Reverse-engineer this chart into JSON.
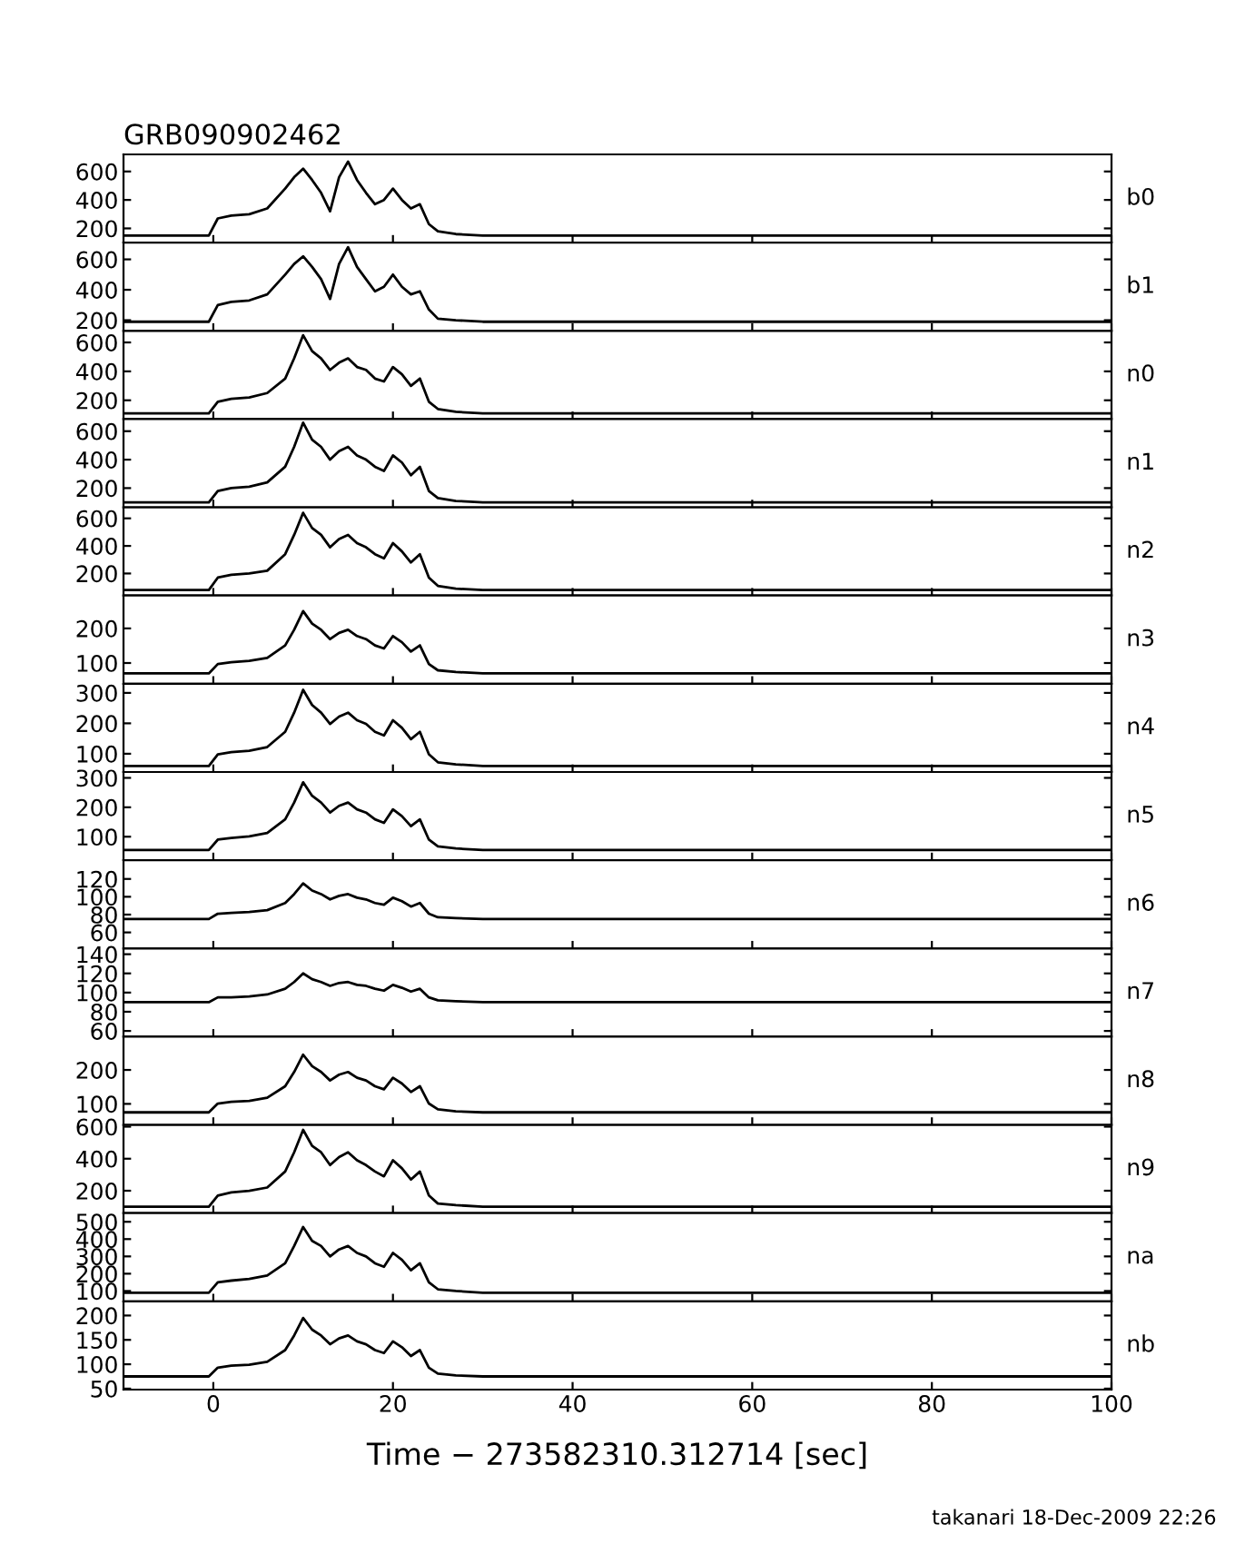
{
  "chart_data": [
    {
      "type": "line",
      "title": "GRB090902462",
      "annotations": [
        "b0"
      ],
      "tick_labels": "y",
      "xlim": [
        -10,
        100
      ],
      "xticks": [
        0,
        20,
        40,
        60,
        80,
        100
      ],
      "ylim": [
        100,
        720
      ],
      "yticks": [
        200,
        400,
        600
      ],
      "grid": false,
      "legend": false,
      "x": [
        -10,
        -5,
        -0.5,
        0.5,
        2,
        4,
        6,
        8,
        9,
        10,
        11,
        12,
        13,
        14,
        15,
        16,
        17,
        18,
        19,
        20,
        21,
        22,
        23,
        24,
        25,
        27,
        30,
        40,
        50,
        60,
        70,
        80,
        90,
        100
      ],
      "series": [
        {
          "color": "#000000",
          "values": [
            150,
            150,
            150,
            270,
            290,
            300,
            340,
            480,
            560,
            620,
            540,
            450,
            320,
            560,
            670,
            540,
            450,
            370,
            400,
            480,
            400,
            340,
            370,
            230,
            180,
            160,
            150,
            150,
            150,
            150,
            150,
            150,
            150,
            150
          ]
        }
      ]
    },
    {
      "type": "line",
      "annotations": [
        "b1"
      ],
      "tick_labels": "y",
      "xlim": [
        -10,
        100
      ],
      "xticks": [
        0,
        20,
        40,
        60,
        80,
        100
      ],
      "ylim": [
        130,
        710
      ],
      "yticks": [
        200,
        400,
        600
      ],
      "grid": false,
      "legend": false,
      "x": [
        -10,
        -5,
        -0.5,
        0.5,
        2,
        4,
        6,
        8,
        9,
        10,
        11,
        12,
        13,
        14,
        15,
        16,
        17,
        18,
        19,
        20,
        21,
        22,
        23,
        24,
        25,
        27,
        30,
        40,
        50,
        60,
        70,
        80,
        90,
        100
      ],
      "series": [
        {
          "color": "#000000",
          "values": [
            190,
            190,
            190,
            300,
            320,
            330,
            370,
            500,
            570,
            620,
            550,
            470,
            340,
            570,
            680,
            550,
            470,
            390,
            420,
            500,
            420,
            370,
            390,
            270,
            210,
            200,
            190,
            190,
            190,
            190,
            190,
            190,
            190,
            190
          ]
        }
      ]
    },
    {
      "type": "line",
      "annotations": [
        "n0"
      ],
      "tick_labels": "y",
      "xlim": [
        -10,
        100
      ],
      "xticks": [
        0,
        20,
        40,
        60,
        80,
        100
      ],
      "ylim": [
        70,
        680
      ],
      "yticks": [
        200,
        400,
        600
      ],
      "grid": false,
      "legend": false,
      "x": [
        -10,
        -5,
        -0.5,
        0.5,
        2,
        4,
        6,
        8,
        9,
        10,
        11,
        12,
        13,
        14,
        15,
        16,
        17,
        18,
        19,
        20,
        21,
        22,
        23,
        24,
        25,
        27,
        30,
        40,
        50,
        60,
        70,
        80,
        90,
        100
      ],
      "series": [
        {
          "color": "#000000",
          "values": [
            110,
            110,
            110,
            190,
            210,
            220,
            250,
            350,
            490,
            650,
            540,
            490,
            410,
            460,
            490,
            430,
            410,
            350,
            330,
            430,
            380,
            300,
            350,
            190,
            140,
            120,
            110,
            110,
            110,
            110,
            110,
            110,
            110,
            110
          ]
        }
      ]
    },
    {
      "type": "line",
      "annotations": [
        "n1"
      ],
      "tick_labels": "y",
      "xlim": [
        -10,
        100
      ],
      "xticks": [
        0,
        20,
        40,
        60,
        80,
        100
      ],
      "ylim": [
        65,
        685
      ],
      "yticks": [
        200,
        400,
        600
      ],
      "grid": false,
      "legend": false,
      "x": [
        -10,
        -5,
        -0.5,
        0.5,
        2,
        4,
        6,
        8,
        9,
        10,
        11,
        12,
        13,
        14,
        15,
        16,
        17,
        18,
        19,
        20,
        21,
        22,
        23,
        24,
        25,
        27,
        30,
        40,
        50,
        60,
        70,
        80,
        90,
        100
      ],
      "series": [
        {
          "color": "#000000",
          "values": [
            100,
            100,
            100,
            180,
            200,
            210,
            240,
            350,
            490,
            660,
            540,
            490,
            400,
            460,
            490,
            430,
            400,
            350,
            320,
            430,
            380,
            290,
            350,
            180,
            130,
            110,
            100,
            100,
            100,
            100,
            100,
            100,
            100,
            100
          ]
        }
      ]
    },
    {
      "type": "line",
      "annotations": [
        "n2"
      ],
      "tick_labels": "y",
      "xlim": [
        -10,
        100
      ],
      "xticks": [
        0,
        20,
        40,
        60,
        80,
        100
      ],
      "ylim": [
        40,
        680
      ],
      "yticks": [
        200,
        400,
        600
      ],
      "grid": false,
      "legend": false,
      "x": [
        -10,
        -5,
        -0.5,
        0.5,
        2,
        4,
        6,
        8,
        9,
        10,
        11,
        12,
        13,
        14,
        15,
        16,
        17,
        18,
        19,
        20,
        21,
        22,
        23,
        24,
        25,
        27,
        30,
        40,
        50,
        60,
        70,
        80,
        90,
        100
      ],
      "series": [
        {
          "color": "#000000",
          "values": [
            80,
            80,
            80,
            170,
            190,
            200,
            220,
            340,
            480,
            640,
            530,
            480,
            390,
            450,
            480,
            420,
            390,
            340,
            310,
            420,
            360,
            280,
            340,
            170,
            110,
            90,
            80,
            80,
            80,
            80,
            80,
            80,
            80,
            80
          ]
        }
      ]
    },
    {
      "type": "line",
      "annotations": [
        "n3"
      ],
      "tick_labels": "y",
      "xlim": [
        -10,
        100
      ],
      "xticks": [
        0,
        20,
        40,
        60,
        80,
        100
      ],
      "ylim": [
        40,
        295
      ],
      "yticks": [
        100,
        200
      ],
      "grid": false,
      "legend": false,
      "x": [
        -10,
        -5,
        -0.5,
        0.5,
        2,
        4,
        6,
        8,
        9,
        10,
        11,
        12,
        13,
        14,
        15,
        16,
        17,
        18,
        19,
        20,
        21,
        22,
        23,
        24,
        25,
        27,
        30,
        40,
        50,
        60,
        70,
        80,
        90,
        100
      ],
      "series": [
        {
          "color": "#000000",
          "values": [
            70,
            70,
            70,
            97,
            102,
            106,
            115,
            151,
            196,
            250,
            214,
            196,
            169,
            187,
            196,
            178,
            169,
            151,
            142,
            178,
            160,
            133,
            151,
            97,
            79,
            74,
            70,
            70,
            70,
            70,
            70,
            70,
            70,
            70
          ]
        }
      ]
    },
    {
      "type": "line",
      "annotations": [
        "n4"
      ],
      "tick_labels": "y",
      "xlim": [
        -10,
        100
      ],
      "xticks": [
        0,
        20,
        40,
        60,
        80,
        100
      ],
      "ylim": [
        40,
        330
      ],
      "yticks": [
        100,
        200,
        300
      ],
      "grid": false,
      "legend": false,
      "x": [
        -10,
        -5,
        -0.5,
        0.5,
        2,
        4,
        6,
        8,
        9,
        10,
        11,
        12,
        13,
        14,
        15,
        16,
        17,
        18,
        19,
        20,
        21,
        22,
        23,
        24,
        25,
        27,
        30,
        40,
        50,
        60,
        70,
        80,
        90,
        100
      ],
      "series": [
        {
          "color": "#000000",
          "values": [
            60,
            60,
            60,
            98,
            105,
            110,
            122,
            172,
            235,
            310,
            260,
            235,
            198,
            222,
            235,
            210,
            198,
            172,
            160,
            210,
            185,
            148,
            172,
            98,
            72,
            65,
            60,
            60,
            60,
            60,
            60,
            60,
            60,
            60
          ]
        }
      ]
    },
    {
      "type": "line",
      "annotations": [
        "n5"
      ],
      "tick_labels": "y",
      "xlim": [
        -10,
        100
      ],
      "xticks": [
        0,
        20,
        40,
        60,
        80,
        100
      ],
      "ylim": [
        20,
        320
      ],
      "yticks": [
        100,
        200,
        300
      ],
      "grid": false,
      "legend": false,
      "x": [
        -10,
        -5,
        -0.5,
        0.5,
        2,
        4,
        6,
        8,
        9,
        10,
        11,
        12,
        13,
        14,
        15,
        16,
        17,
        18,
        19,
        20,
        21,
        22,
        23,
        24,
        25,
        27,
        30,
        40,
        50,
        60,
        70,
        80,
        90,
        100
      ],
      "series": [
        {
          "color": "#000000",
          "values": [
            55,
            55,
            55,
            90,
            96,
            101,
            113,
            159,
            216,
            285,
            239,
            216,
            182,
            205,
            216,
            193,
            182,
            159,
            147,
            193,
            170,
            136,
            159,
            90,
            67,
            60,
            55,
            55,
            55,
            55,
            55,
            55,
            55,
            55
          ]
        }
      ]
    },
    {
      "type": "line",
      "annotations": [
        "n6"
      ],
      "tick_labels": "y",
      "xlim": [
        -10,
        100
      ],
      "xticks": [
        0,
        20,
        40,
        60,
        80,
        100
      ],
      "ylim": [
        42,
        141
      ],
      "yticks": [
        60,
        80,
        100,
        120
      ],
      "grid": false,
      "legend": false,
      "x": [
        -10,
        -5,
        -0.5,
        0.5,
        2,
        4,
        6,
        8,
        9,
        10,
        11,
        12,
        13,
        14,
        15,
        16,
        17,
        18,
        19,
        20,
        21,
        22,
        23,
        24,
        25,
        27,
        30,
        40,
        50,
        60,
        70,
        80,
        90,
        100
      ],
      "series": [
        {
          "color": "#000000",
          "values": [
            75,
            75,
            75,
            81,
            82,
            83,
            85,
            93,
            103,
            115,
            107,
            103,
            97,
            101,
            103,
            99,
            97,
            93,
            91,
            99,
            95,
            89,
            93,
            81,
            77,
            76,
            75,
            75,
            75,
            75,
            75,
            75,
            75,
            75
          ]
        }
      ]
    },
    {
      "type": "line",
      "annotations": [
        "n7"
      ],
      "tick_labels": "y",
      "xlim": [
        -10,
        100
      ],
      "xticks": [
        0,
        20,
        40,
        60,
        80,
        100
      ],
      "ylim": [
        54,
        146
      ],
      "yticks": [
        60,
        80,
        100,
        120,
        140
      ],
      "grid": false,
      "legend": false,
      "x": [
        -10,
        -5,
        -0.5,
        0.5,
        2,
        4,
        6,
        8,
        9,
        10,
        11,
        12,
        13,
        14,
        15,
        16,
        17,
        18,
        19,
        20,
        21,
        22,
        23,
        24,
        25,
        27,
        30,
        40,
        50,
        60,
        70,
        80,
        90,
        100
      ],
      "series": [
        {
          "color": "#000000",
          "values": [
            90,
            90,
            90,
            95,
            95,
            96,
            98,
            104,
            111,
            120,
            114,
            111,
            107,
            110,
            111,
            108,
            107,
            104,
            102,
            108,
            105,
            101,
            104,
            95,
            92,
            91,
            90,
            90,
            90,
            90,
            90,
            90,
            90,
            90
          ]
        }
      ]
    },
    {
      "type": "line",
      "annotations": [
        "n8"
      ],
      "tick_labels": "y",
      "xlim": [
        -10,
        100
      ],
      "xticks": [
        0,
        20,
        40,
        60,
        80,
        100
      ],
      "ylim": [
        38,
        298
      ],
      "yticks": [
        100,
        200
      ],
      "grid": false,
      "legend": false,
      "x": [
        -10,
        -5,
        -0.5,
        0.5,
        2,
        4,
        6,
        8,
        9,
        10,
        11,
        12,
        13,
        14,
        15,
        16,
        17,
        18,
        19,
        20,
        21,
        22,
        23,
        24,
        25,
        27,
        30,
        40,
        50,
        60,
        70,
        80,
        90,
        100
      ],
      "series": [
        {
          "color": "#000000",
          "values": [
            75,
            75,
            75,
            101,
            106,
            109,
            118,
            152,
            194,
            245,
            211,
            194,
            169,
            186,
            194,
            177,
            169,
            152,
            143,
            177,
            160,
            135,
            152,
            101,
            84,
            78,
            75,
            75,
            75,
            75,
            75,
            75,
            75,
            75
          ]
        }
      ]
    },
    {
      "type": "line",
      "annotations": [
        "n9"
      ],
      "tick_labels": "y",
      "xlim": [
        -10,
        100
      ],
      "xticks": [
        0,
        20,
        40,
        60,
        80,
        100
      ],
      "ylim": [
        60,
        611
      ],
      "yticks": [
        200,
        400,
        600
      ],
      "grid": false,
      "legend": false,
      "x": [
        -10,
        -5,
        -0.5,
        0.5,
        2,
        4,
        6,
        8,
        9,
        10,
        11,
        12,
        13,
        14,
        15,
        16,
        17,
        18,
        19,
        20,
        21,
        22,
        23,
        24,
        25,
        27,
        30,
        40,
        50,
        60,
        70,
        80,
        90,
        100
      ],
      "series": [
        {
          "color": "#000000",
          "values": [
            100,
            100,
            100,
            170,
            190,
            200,
            220,
            320,
            440,
            580,
            480,
            440,
            360,
            410,
            440,
            390,
            360,
            320,
            290,
            390,
            340,
            270,
            320,
            170,
            120,
            110,
            100,
            100,
            100,
            100,
            100,
            100,
            100,
            100
          ]
        }
      ]
    },
    {
      "type": "line",
      "annotations": [
        "na"
      ],
      "tick_labels": "y",
      "xlim": [
        -10,
        100
      ],
      "xticks": [
        0,
        20,
        40,
        60,
        80,
        100
      ],
      "ylim": [
        40,
        550
      ],
      "yticks": [
        100,
        200,
        300,
        400,
        500
      ],
      "grid": false,
      "legend": false,
      "x": [
        -10,
        -5,
        -0.5,
        0.5,
        2,
        4,
        6,
        8,
        9,
        10,
        11,
        12,
        13,
        14,
        15,
        16,
        17,
        18,
        19,
        20,
        21,
        22,
        23,
        24,
        25,
        27,
        30,
        40,
        50,
        60,
        70,
        80,
        90,
        100
      ],
      "series": [
        {
          "color": "#000000",
          "values": [
            90,
            90,
            90,
            150,
            160,
            170,
            190,
            260,
            360,
            470,
            390,
            360,
            300,
            340,
            360,
            320,
            300,
            260,
            240,
            320,
            280,
            220,
            260,
            150,
            110,
            100,
            90,
            90,
            90,
            90,
            90,
            90,
            90,
            90
          ]
        }
      ]
    },
    {
      "type": "line",
      "xlabel": "Time − 273582310.312714 [sec]",
      "annotations": [
        "nb",
        "takanari 18-Dec-2009 22:26"
      ],
      "xlim": [
        -10,
        100
      ],
      "xticks": [
        0,
        20,
        40,
        60,
        80,
        100
      ],
      "ylim": [
        48,
        229
      ],
      "yticks": [
        50,
        100,
        150,
        200
      ],
      "grid": false,
      "legend": false,
      "x": [
        -10,
        -5,
        -0.5,
        0.5,
        2,
        4,
        6,
        8,
        9,
        10,
        11,
        12,
        13,
        14,
        15,
        16,
        17,
        18,
        19,
        20,
        21,
        22,
        23,
        24,
        25,
        27,
        30,
        40,
        50,
        60,
        70,
        80,
        90,
        100
      ],
      "series": [
        {
          "color": "#000000",
          "values": [
            75,
            75,
            75,
            93,
            97,
            99,
            105,
            129,
            159,
            195,
            171,
            159,
            141,
            153,
            159,
            147,
            141,
            129,
            123,
            147,
            135,
            117,
            129,
            93,
            81,
            77,
            75,
            75,
            75,
            75,
            75,
            75,
            75,
            75
          ]
        }
      ]
    }
  ]
}
